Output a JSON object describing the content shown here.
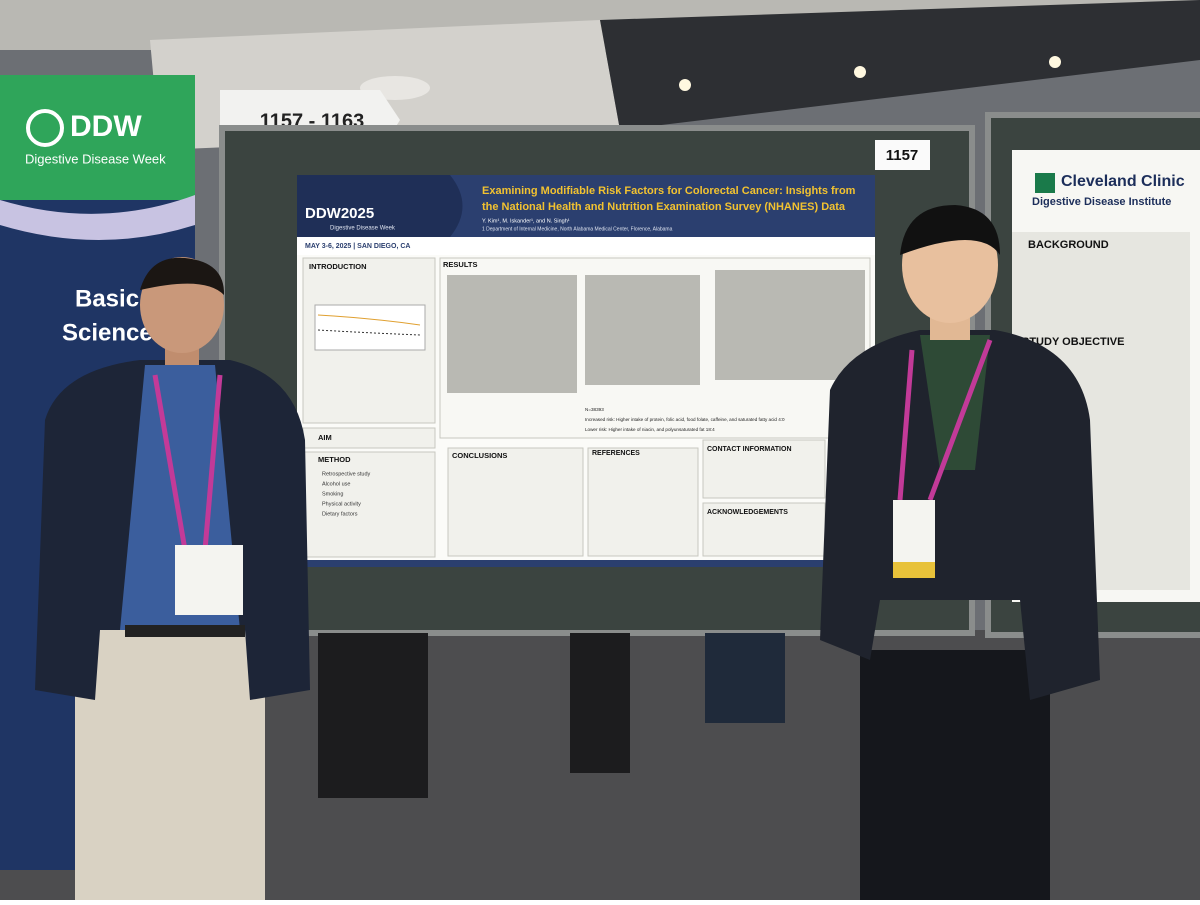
{
  "signs": {
    "range": "1157 - 1163",
    "board_number": "1157"
  },
  "banner": {
    "logo": "DDW",
    "subtitle": "Digestive Disease Week",
    "line1": "Basic",
    "line2": "Science"
  },
  "poster": {
    "logo": "DDW2025",
    "logo_sub": "Digestive Disease Week",
    "dates": "MAY 3-6, 2025 | SAN DIEGO, CA",
    "title": [
      "Examining Modifiable Risk Factors for Colorectal Cancer: Insights from",
      "the National Health and Nutrition Examination Survey (NHANES) Data"
    ],
    "authors": "Y. Kim¹, M. Iskander¹, and N. Singh¹",
    "affiliation": "1 Department of Internal Medicine, North Alabama Medical Center, Florence, Alabama",
    "sections": {
      "introduction": "INTRODUCTION",
      "results": "RESULTS",
      "aim": "AIM",
      "method": "METHOD",
      "conclusions": "CONCLUSIONS",
      "references": "REFERENCES",
      "contact": "CONTACT INFORMATION",
      "acknowledgements": "ACKNOWLEDGEMENTS"
    },
    "method_items": [
      "Retrospective study",
      "Alcohol use",
      "Smoking",
      "Physical activity",
      "Dietary factors"
    ],
    "results_lines": [
      "N=38393",
      "Increased risk: Higher intake of protein, folic acid, food folate, caffeine, and saturated fatty acid 4:0",
      "Lower risk: Higher intake of niacin, and polyunsaturated fat 18:4"
    ]
  },
  "right_poster": {
    "org": "Cleveland Clinic",
    "institute": "Digestive Disease Institute",
    "background": "BACKGROUND",
    "objective": "STUDY OBJECTIVE"
  }
}
